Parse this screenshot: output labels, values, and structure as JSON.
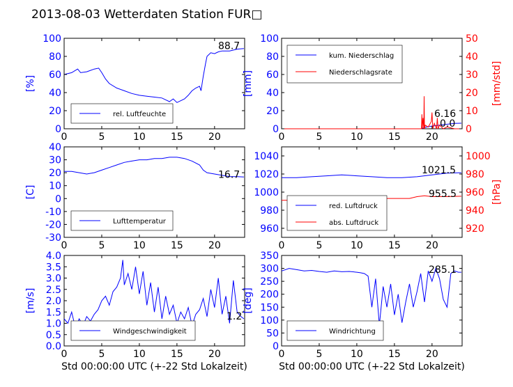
{
  "title": "2013-08-03 Wetterdaten Station FUR□",
  "colors": {
    "blue": "#0000ff",
    "red": "#ff0000",
    "black": "#000000"
  },
  "chart_data": [
    {
      "id": "humidity",
      "type": "line",
      "ylabel": "[%]",
      "ylim": [
        0,
        100
      ],
      "yticks": [
        0,
        20,
        40,
        60,
        80,
        100
      ],
      "xlim": [
        0,
        24
      ],
      "xticks": [
        0,
        5,
        10,
        15,
        20
      ],
      "legend": "bottom-left",
      "series": [
        {
          "name": "rel. Luftfeuchte",
          "axis": "left",
          "color": "#0000ff",
          "x": [
            0,
            1,
            1.8,
            2.2,
            3,
            4,
            4.6,
            5,
            5.5,
            6,
            7,
            8,
            9,
            10,
            11,
            12,
            13,
            13.5,
            14,
            14.5,
            15,
            15.5,
            16,
            16.5,
            17,
            17.5,
            18,
            18.2,
            18.5,
            18.8,
            19,
            19.5,
            20,
            20.5,
            21,
            22,
            23,
            23.9
          ],
          "y": [
            60,
            62,
            66,
            62,
            63,
            66,
            67,
            62,
            55,
            50,
            45,
            42,
            39,
            37,
            36,
            35,
            34,
            32,
            30,
            33,
            29,
            31,
            33,
            37,
            42,
            45,
            47,
            42,
            58,
            72,
            80,
            84,
            83,
            85,
            86,
            86,
            88,
            88.7
          ]
        }
      ],
      "annotations": [
        "88.7"
      ]
    },
    {
      "id": "precip",
      "type": "line",
      "ylabel": "[mm]",
      "ylim": [
        0,
        100
      ],
      "yticks": [
        0,
        20,
        40,
        60,
        80,
        100
      ],
      "ylabel2": "[mm/std]",
      "ylim2": [
        0,
        50
      ],
      "yticks2": [
        0,
        10,
        20,
        30,
        40,
        50
      ],
      "xlim": [
        0,
        24
      ],
      "xticks": [
        0,
        5,
        10,
        15,
        20
      ],
      "legend": "top-left",
      "series": [
        {
          "name": "kum. Niederschlag",
          "axis": "left",
          "color": "#0000ff",
          "x": [
            0,
            18.5,
            18.9,
            19.3,
            20,
            21,
            22,
            23,
            23.9
          ],
          "y": [
            0,
            0,
            1,
            2,
            3,
            4,
            5,
            6,
            6.16
          ]
        },
        {
          "name": "Niederschlagsrate",
          "axis": "right",
          "color": "#ff0000",
          "x": [
            0,
            18.6,
            18.65,
            18.7,
            18.8,
            18.9,
            18.95,
            19.0,
            19.1,
            19.5,
            19.9,
            20.0,
            20.1,
            20.3,
            20.6,
            20.7,
            20.8,
            21.0,
            21.5,
            22.0,
            23.0,
            23.9
          ],
          "y": [
            0,
            0,
            8,
            0,
            6,
            0,
            18,
            0,
            2,
            1,
            4,
            9,
            0,
            3,
            0,
            6,
            0,
            2,
            0,
            1,
            0,
            0
          ]
        }
      ],
      "annotations": [
        "6.16",
        "0.0"
      ]
    },
    {
      "id": "temperature",
      "type": "line",
      "ylabel": "[C]",
      "ylim": [
        -30,
        40
      ],
      "yticks": [
        -30,
        -20,
        -10,
        0,
        10,
        20,
        30,
        40
      ],
      "xlim": [
        0,
        24
      ],
      "xticks": [
        0,
        5,
        10,
        15,
        20
      ],
      "legend": "bottom-left",
      "series": [
        {
          "name": "Lufttemperatur",
          "axis": "left",
          "color": "#0000ff",
          "x": [
            0,
            1,
            2,
            3,
            4,
            5,
            6,
            7,
            8,
            9,
            10,
            11,
            12,
            13,
            14,
            15,
            16,
            17,
            18,
            18.5,
            19,
            20,
            21,
            22,
            23,
            23.9
          ],
          "y": [
            21,
            21,
            20,
            19,
            20,
            22,
            24,
            26,
            28,
            29,
            30,
            30,
            31,
            31,
            32,
            32,
            31,
            29,
            26,
            22,
            20,
            19,
            18,
            17,
            17,
            16.7
          ]
        }
      ],
      "annotations": [
        "16.7"
      ]
    },
    {
      "id": "pressure",
      "type": "line",
      "ylim": [
        950,
        1050
      ],
      "yticks": [
        960,
        980,
        1000,
        1020,
        1040
      ],
      "ylabel2": "[hPa]",
      "ylim2": [
        910,
        1010
      ],
      "yticks2": [
        920,
        940,
        960,
        980,
        1000
      ],
      "xlim": [
        0,
        24
      ],
      "xticks": [
        0,
        5,
        10,
        15,
        20
      ],
      "legend": "bottom-left",
      "series": [
        {
          "name": "red. Luftdruck",
          "axis": "left",
          "color": "#0000ff",
          "x": [
            0,
            2,
            4,
            6,
            8,
            10,
            12,
            14,
            16,
            18,
            20,
            22,
            23.9
          ],
          "y": [
            1016,
            1016,
            1017,
            1018,
            1019,
            1018,
            1017,
            1016,
            1016,
            1017,
            1019,
            1021,
            1021.5
          ]
        },
        {
          "name": "abs. Luftdruck",
          "axis": "right",
          "color": "#ff0000",
          "x": [
            0,
            2,
            4,
            6,
            8,
            10,
            12,
            14,
            16,
            17,
            18,
            19,
            20,
            22,
            23.9
          ],
          "y": [
            951,
            951,
            952,
            954,
            955,
            955,
            954,
            953,
            953,
            953,
            955,
            956,
            955,
            955,
            955.5
          ]
        }
      ],
      "annotations": [
        "1021.5",
        "955.5"
      ]
    },
    {
      "id": "wind_speed",
      "type": "line",
      "ylabel": "[m/s]",
      "ylim": [
        0,
        4
      ],
      "yticks": [
        0.0,
        0.5,
        1.0,
        1.5,
        2.0,
        2.5,
        3.0,
        3.5,
        4.0
      ],
      "xlim": [
        0,
        24
      ],
      "xticks": [
        0,
        5,
        10,
        15,
        20
      ],
      "legend": "bottom-center",
      "series": [
        {
          "name": "Windgeschwindigkeit",
          "axis": "left",
          "color": "#0000ff",
          "x": [
            0,
            0.5,
            1,
            1.5,
            2,
            2.5,
            3,
            3.5,
            4,
            4.5,
            5,
            5.5,
            6,
            6.5,
            7,
            7.5,
            7.8,
            8,
            8.5,
            9,
            9.5,
            10,
            10.5,
            11,
            11.5,
            12,
            12.5,
            13,
            13.5,
            14,
            14.5,
            15,
            15.5,
            16,
            16.5,
            17,
            17.5,
            18,
            18.5,
            19,
            19.5,
            20,
            20.5,
            21,
            21.5,
            22,
            22.5,
            23,
            23.5,
            23.9
          ],
          "y": [
            1.2,
            1.0,
            1.5,
            0.8,
            1.2,
            0.9,
            1.3,
            1.1,
            1.4,
            1.6,
            2.0,
            2.2,
            1.8,
            2.4,
            2.6,
            3.0,
            3.8,
            2.7,
            3.2,
            2.5,
            3.5,
            2.3,
            3.3,
            1.8,
            2.8,
            1.5,
            2.6,
            1.2,
            2.2,
            1.4,
            1.8,
            1.0,
            1.5,
            1.2,
            1.7,
            0.9,
            1.4,
            1.6,
            2.1,
            1.3,
            2.5,
            1.7,
            3.0,
            1.4,
            2.2,
            1.0,
            2.9,
            1.5,
            1.3,
            1.2
          ]
        }
      ],
      "annotations": [
        "1.2"
      ]
    },
    {
      "id": "wind_dir",
      "type": "line",
      "ylabel": "[deg]",
      "ylim": [
        0,
        350
      ],
      "yticks": [
        0,
        50,
        100,
        150,
        200,
        250,
        300,
        350
      ],
      "xlim": [
        0,
        24
      ],
      "xticks": [
        0,
        5,
        10,
        15,
        20
      ],
      "legend": "bottom-left",
      "series": [
        {
          "name": "Windrichtung",
          "axis": "left",
          "color": "#0000ff",
          "x": [
            0,
            1,
            2,
            3,
            4,
            5,
            6,
            7,
            8,
            9,
            10,
            10.5,
            11,
            11.5,
            12,
            12.5,
            13,
            13.5,
            14,
            14.5,
            15,
            15.5,
            16,
            16.5,
            17,
            17.5,
            18,
            18.5,
            19,
            19.5,
            20,
            20.5,
            21,
            21.5,
            22,
            22.5,
            23,
            23.5,
            23.9
          ],
          "y": [
            290,
            300,
            295,
            290,
            292,
            288,
            285,
            290,
            287,
            288,
            285,
            283,
            280,
            270,
            150,
            260,
            80,
            230,
            150,
            240,
            120,
            200,
            90,
            170,
            240,
            150,
            210,
            280,
            170,
            290,
            250,
            300,
            260,
            180,
            150,
            280,
            290,
            285,
            285.1
          ]
        }
      ],
      "annotations": [
        "285.1"
      ]
    }
  ],
  "xlabel": "Std 00:00:00 UTC (+-22 Std Lokalzeit)"
}
